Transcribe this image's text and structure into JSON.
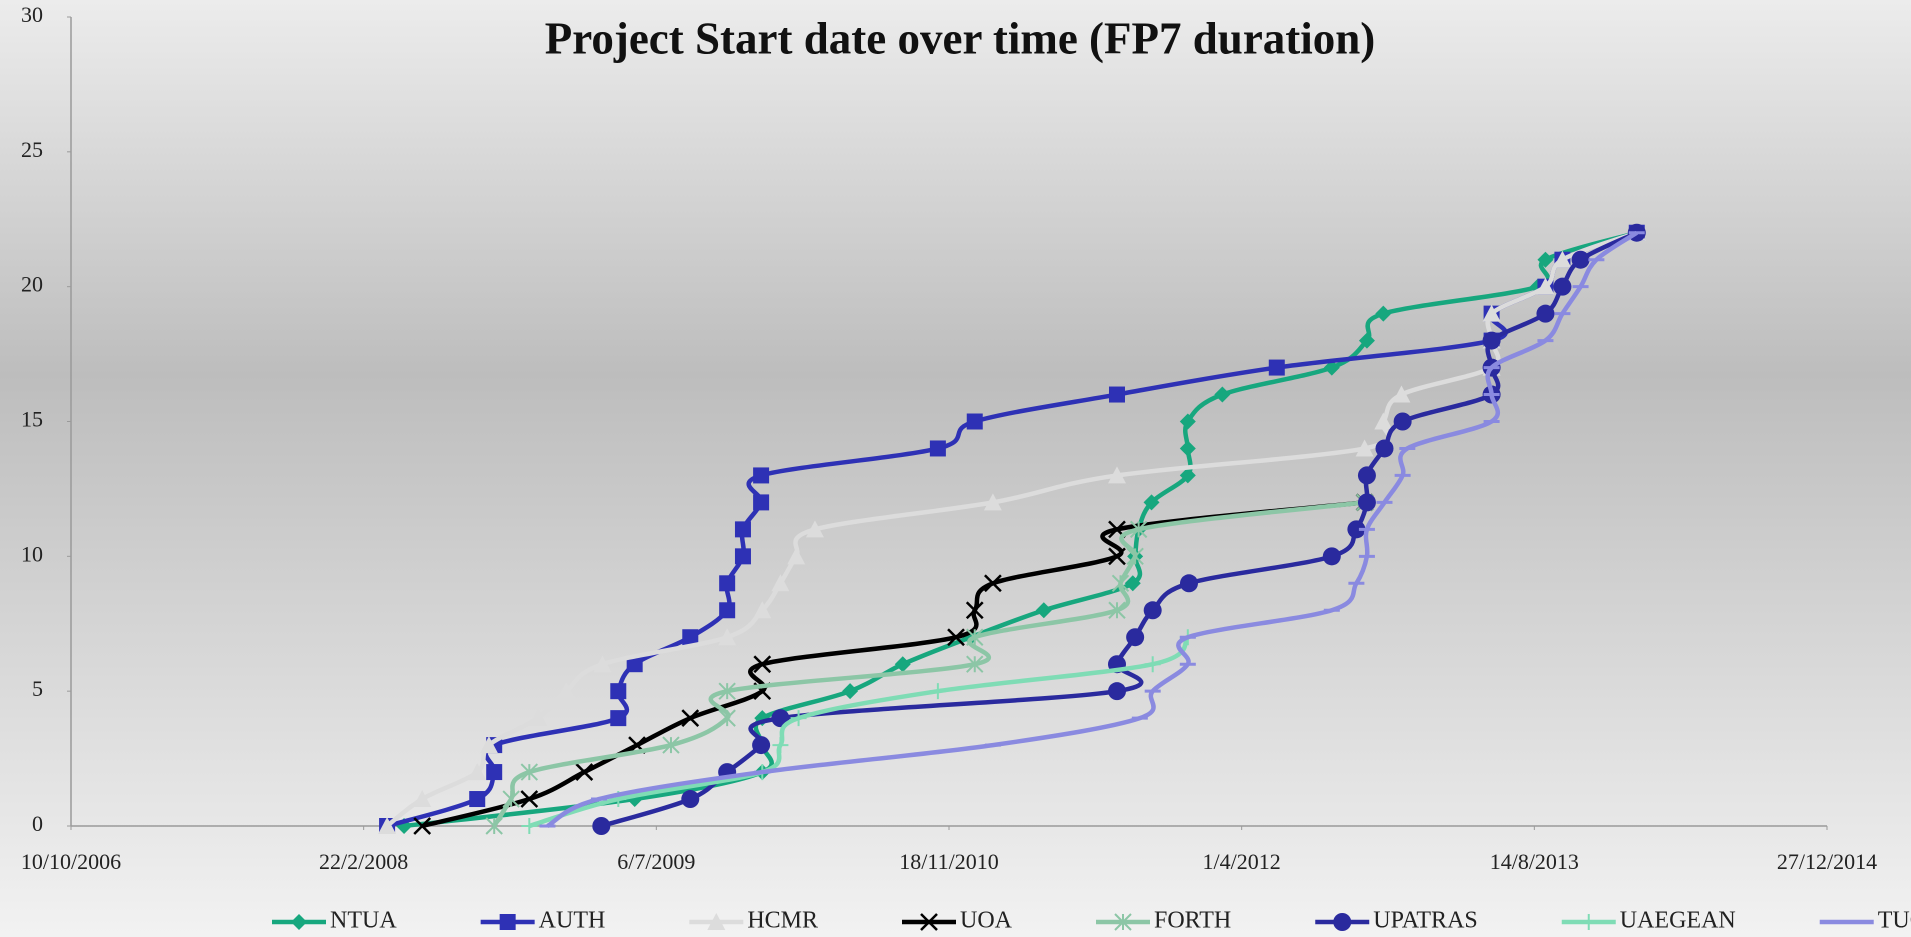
{
  "chart_data": {
    "type": "line",
    "title": "Project Start date over time (FP7 duration)",
    "xlim": [
      "2006-10-10",
      "2014-12-27"
    ],
    "xticks": [
      {
        "value": "2006-10-10",
        "label": "10/10/2006"
      },
      {
        "value": "2008-02-22",
        "label": "22/2/2008"
      },
      {
        "value": "2009-07-06",
        "label": "6/7/2009"
      },
      {
        "value": "2010-11-18",
        "label": "18/11/2010"
      },
      {
        "value": "2012-04-01",
        "label": "1/4/2012"
      },
      {
        "value": "2013-08-14",
        "label": "14/8/2013"
      },
      {
        "value": "2014-12-27",
        "label": "27/12/2014"
      }
    ],
    "ylim": [
      0,
      30
    ],
    "yticks": [
      0,
      5,
      10,
      15,
      20,
      25,
      30
    ],
    "legend": "bottom",
    "series": [
      {
        "name": "NTUA",
        "color": "#17a77e",
        "marker": "diamond",
        "x": [
          "2008-05-01",
          "2009-05-30",
          "2010-01-03",
          "2010-01-03",
          "2010-01-03",
          "2010-06-02",
          "2010-08-31",
          "2010-12-25",
          "2011-04-29",
          "2011-09-28",
          "2011-10-02",
          "2011-10-08",
          "2011-10-30",
          "2011-12-31",
          "2011-12-31",
          "2011-12-31",
          "2012-02-28",
          "2012-09-02",
          "2012-11-01",
          "2012-11-29",
          "2013-08-20",
          "2013-09-02",
          "2014-02-05"
        ],
        "values": [
          0,
          1,
          2,
          3,
          4,
          5,
          6,
          7,
          8,
          9,
          10,
          11,
          12,
          13,
          14,
          15,
          16,
          17,
          18,
          19,
          20,
          21,
          22
        ]
      },
      {
        "name": "AUTH",
        "color": "#2e31b5",
        "marker": "square",
        "x": [
          "2008-04-02",
          "2008-09-03",
          "2008-10-02",
          "2008-10-02",
          "2009-05-02",
          "2009-05-02",
          "2009-05-30",
          "2009-09-02",
          "2009-11-04",
          "2009-11-04",
          "2009-12-01",
          "2009-12-01",
          "2010-01-01",
          "2010-01-01",
          "2010-10-30",
          "2011-01-01",
          "2011-09-01",
          "2012-05-31",
          "2013-06-02",
          "2013-06-02",
          "2013-09-02",
          "2013-10-01",
          "2014-02-05"
        ],
        "values": [
          0,
          1,
          2,
          3,
          4,
          5,
          6,
          7,
          8,
          9,
          10,
          11,
          12,
          13,
          14,
          15,
          16,
          17,
          18,
          19,
          20,
          21,
          22
        ]
      },
      {
        "name": "HCMR",
        "color": "#dcdcdc",
        "marker": "triangle",
        "x": [
          "2008-04-02",
          "2008-06-01",
          "2008-09-03",
          "2008-09-23",
          "2008-12-16",
          "2009-02-02",
          "2009-04-05",
          "2009-11-04",
          "2010-01-03",
          "2010-02-03",
          "2010-03-02",
          "2010-04-03",
          "2011-02-01",
          "2011-09-01",
          "2012-10-28",
          "2012-11-29",
          "2012-12-30",
          "2013-06-02",
          "2013-06-02",
          "2013-06-02",
          "2013-09-02",
          "2013-10-01",
          "2014-02-05"
        ],
        "values": [
          0,
          1,
          2,
          3,
          4,
          5,
          6,
          7,
          8,
          9,
          10,
          11,
          12,
          13,
          14,
          15,
          16,
          17,
          18,
          19,
          20,
          21,
          22
        ]
      },
      {
        "name": "UOA",
        "color": "#000000",
        "marker": "x",
        "x": [
          "2008-06-01",
          "2008-12-01",
          "2009-03-05",
          "2009-06-03",
          "2009-09-02",
          "2010-01-03",
          "2010-01-03",
          "2010-11-30",
          "2011-01-01",
          "2011-02-01",
          "2011-09-01",
          "2011-09-01",
          "2012-10-28"
        ],
        "values": [
          0,
          1,
          2,
          3,
          4,
          5,
          6,
          7,
          8,
          9,
          10,
          11,
          12
        ]
      },
      {
        "name": "FORTH",
        "color": "#8cc6a6",
        "marker": "asterisk",
        "x": [
          "2008-10-02",
          "2008-10-31",
          "2008-12-01",
          "2009-07-31",
          "2009-11-04",
          "2009-11-04",
          "2011-01-01",
          "2011-01-01",
          "2011-09-01",
          "2011-09-07",
          "2011-10-02",
          "2011-10-08",
          "2012-10-28"
        ],
        "values": [
          0,
          1,
          2,
          3,
          4,
          5,
          6,
          7,
          8,
          9,
          10,
          11,
          12
        ]
      },
      {
        "name": "UPATRAS",
        "color": "#2a2a9e",
        "marker": "circle",
        "x": [
          "2009-04-03",
          "2009-09-02",
          "2009-11-04",
          "2010-01-01",
          "2010-02-03",
          "2011-09-01",
          "2011-09-01",
          "2011-10-02",
          "2011-11-01",
          "2012-01-02",
          "2012-09-02",
          "2012-10-14",
          "2012-11-01",
          "2012-11-01",
          "2012-12-01",
          "2013-01-01",
          "2013-06-02",
          "2013-06-02",
          "2013-06-02",
          "2013-09-02",
          "2013-10-01",
          "2013-11-01",
          "2014-02-05"
        ],
        "values": [
          0,
          1,
          2,
          3,
          4,
          5,
          6,
          7,
          8,
          9,
          10,
          11,
          12,
          13,
          14,
          15,
          16,
          17,
          18,
          19,
          20,
          21,
          22
        ]
      },
      {
        "name": "UAEGEAN",
        "color": "#7fdcb5",
        "marker": "plus",
        "x": [
          "2008-12-01",
          "2009-05-02",
          "2010-01-03",
          "2010-02-03",
          "2010-03-06",
          "2010-10-30",
          "2011-11-01",
          "2011-12-31"
        ],
        "values": [
          0,
          1,
          2,
          3,
          4,
          5,
          6,
          7
        ]
      },
      {
        "name": "TUC",
        "color": "#8a8ae0",
        "marker": "dash",
        "x": [
          "2009-01-01",
          "2009-03-30",
          "2010-01-03",
          "2011-02-01",
          "2011-10-10",
          "2011-11-01",
          "2011-12-31",
          "2011-12-31",
          "2012-09-02",
          "2012-10-14",
          "2012-11-01",
          "2012-11-01",
          "2012-12-01",
          "2013-01-01",
          "2013-01-09",
          "2013-06-02",
          "2013-06-02",
          "2013-06-02",
          "2013-09-02",
          "2013-10-01",
          "2013-11-01",
          "2013-11-28",
          "2014-02-05"
        ],
        "values": [
          0,
          1,
          2,
          3,
          4,
          5,
          6,
          7,
          8,
          9,
          10,
          11,
          12,
          13,
          14,
          15,
          16,
          17,
          18,
          19,
          20,
          21,
          22
        ]
      }
    ]
  }
}
